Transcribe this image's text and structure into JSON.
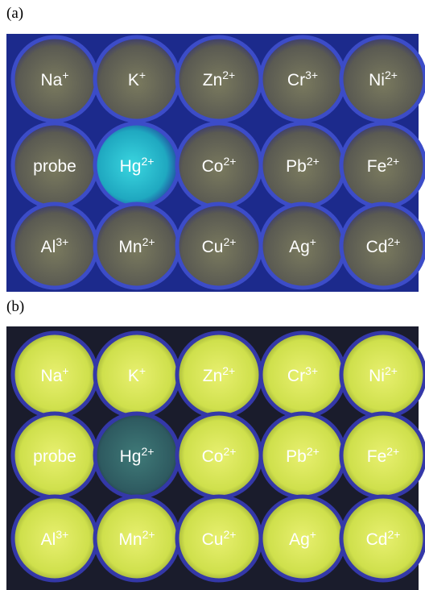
{
  "panels": [
    {
      "label": "(a)",
      "wells": [
        [
          {
            "symbol": "Na",
            "charge": "+"
          },
          {
            "symbol": "K",
            "charge": "+"
          },
          {
            "symbol": "Zn",
            "charge": "2+"
          },
          {
            "symbol": "Cr",
            "charge": "3+"
          },
          {
            "symbol": "Ni",
            "charge": "2+"
          }
        ],
        [
          {
            "symbol": "probe",
            "charge": null
          },
          {
            "symbol": "Hg",
            "charge": "2+"
          },
          {
            "symbol": "Co",
            "charge": "2+"
          },
          {
            "symbol": "Pb",
            "charge": "2+"
          },
          {
            "symbol": "Fe",
            "charge": "2+"
          }
        ],
        [
          {
            "symbol": "Al",
            "charge": "3+"
          },
          {
            "symbol": "Mn",
            "charge": "2+"
          },
          {
            "symbol": "Cu",
            "charge": "2+"
          },
          {
            "symbol": "Ag",
            "charge": "+"
          },
          {
            "symbol": "Cd",
            "charge": "2+"
          }
        ]
      ]
    },
    {
      "label": "(b)",
      "wells": [
        [
          {
            "symbol": "Na",
            "charge": "+"
          },
          {
            "symbol": "K",
            "charge": "+"
          },
          {
            "symbol": "Zn",
            "charge": "2+"
          },
          {
            "symbol": "Cr",
            "charge": "3+"
          },
          {
            "symbol": "Ni",
            "charge": "2+"
          }
        ],
        [
          {
            "symbol": "probe",
            "charge": null
          },
          {
            "symbol": "Hg",
            "charge": "2+"
          },
          {
            "symbol": "Co",
            "charge": "2+"
          },
          {
            "symbol": "Pb",
            "charge": "2+"
          },
          {
            "symbol": "Fe",
            "charge": "2+"
          }
        ],
        [
          {
            "symbol": "Al",
            "charge": "3+"
          },
          {
            "symbol": "Mn",
            "charge": "2+"
          },
          {
            "symbol": "Cu",
            "charge": "2+"
          },
          {
            "symbol": "Ag",
            "charge": "+"
          },
          {
            "symbol": "Cd",
            "charge": "2+"
          }
        ]
      ]
    }
  ]
}
